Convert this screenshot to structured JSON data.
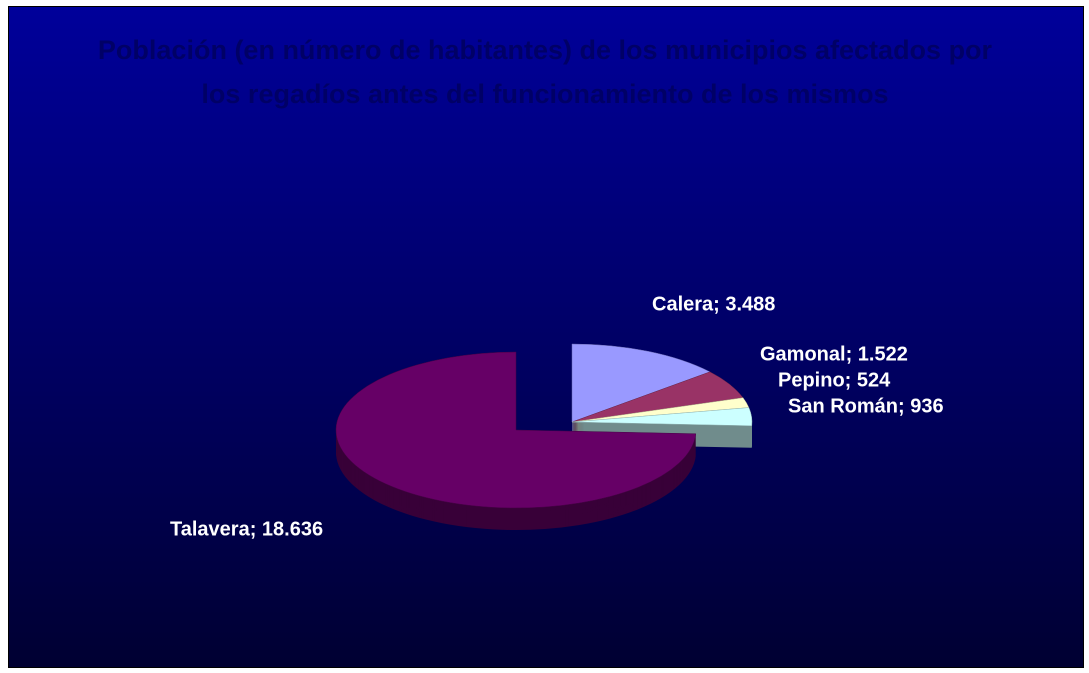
{
  "chart_data": {
    "type": "pie",
    "title": "Población (en número de habitantes) de los municipios afectados por los regadíos antes del funcionamiento de los mismos",
    "values": [
      3488,
      1522,
      524,
      936,
      18636
    ],
    "value_labels": [
      "Calera; 3.488",
      "Gamonal; 1.522",
      "Pepino; 524",
      "San Román; 936",
      "Talavera; 18.636"
    ],
    "colors": [
      "#9999ff",
      "#993366",
      "#ffffcc",
      "#ccffff",
      "#660066"
    ],
    "three_d": true
  }
}
